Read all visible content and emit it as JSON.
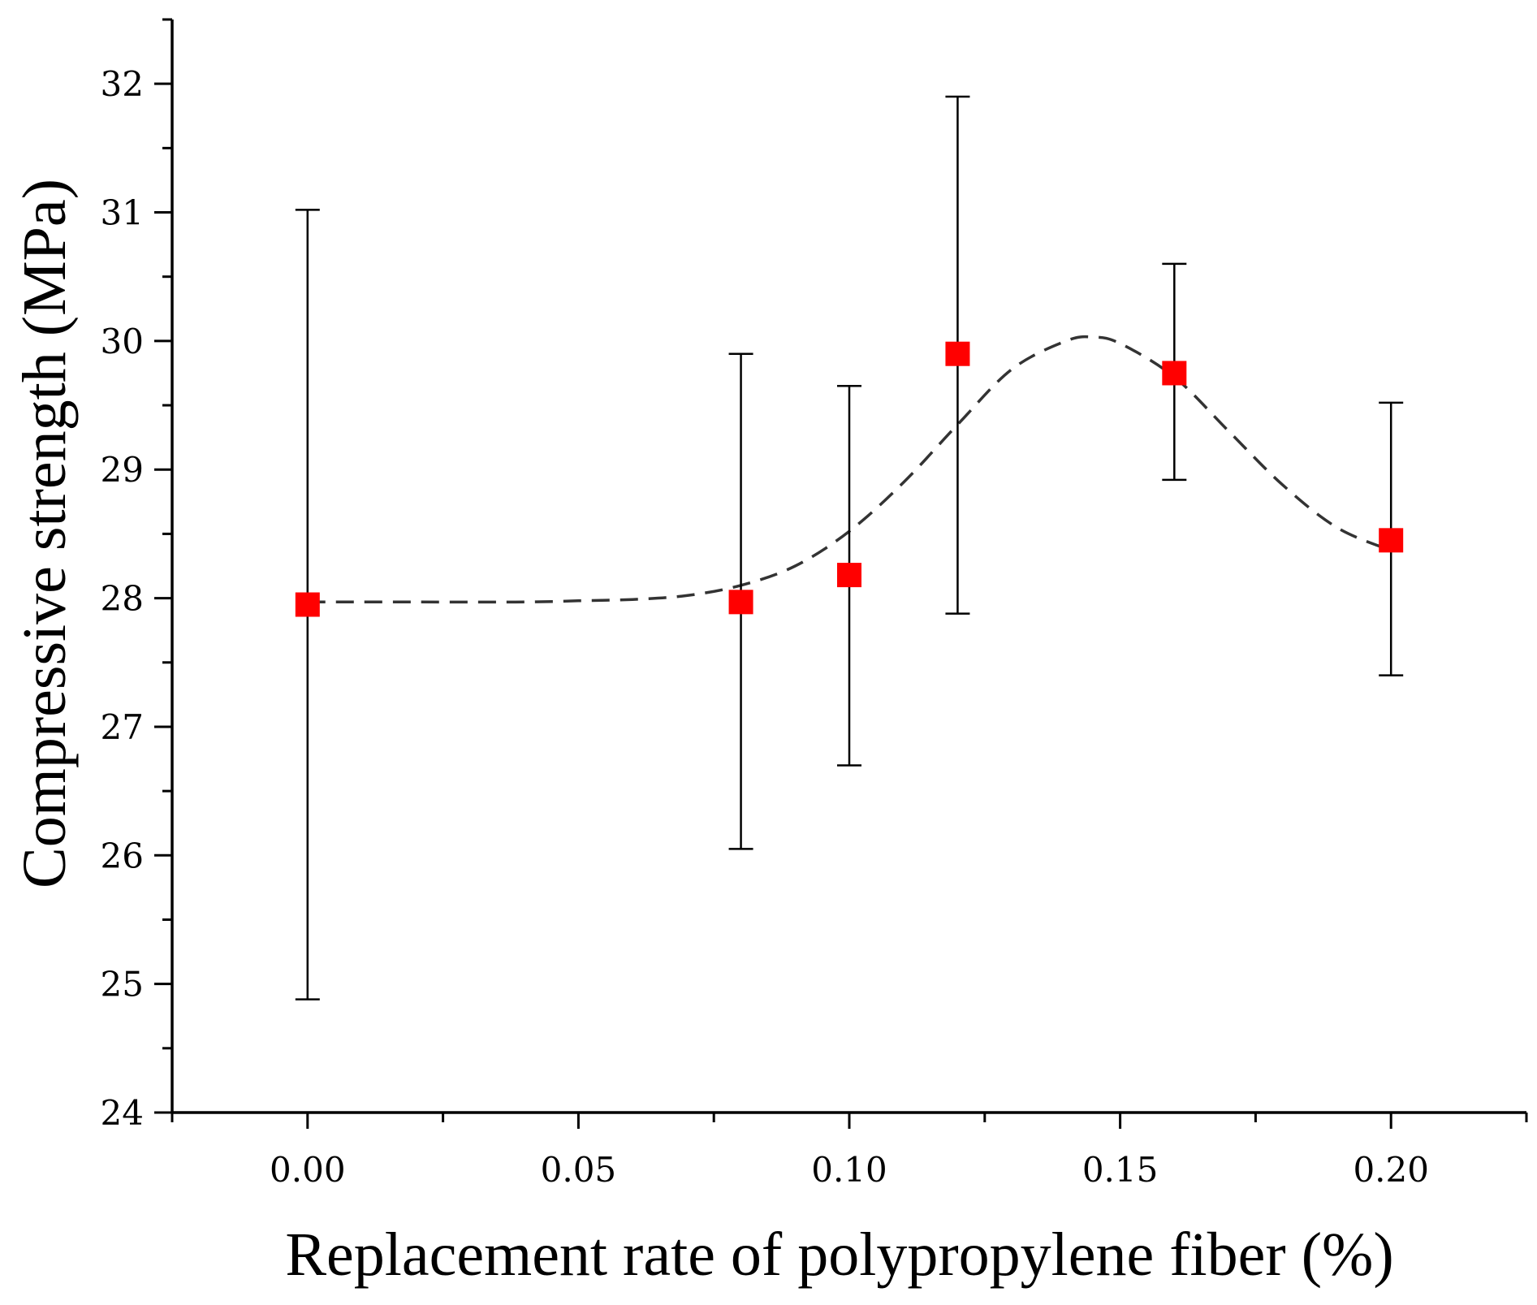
{
  "chart_data": {
    "type": "scatter",
    "title": "",
    "xlabel": "Replacement rate of polypropylene fiber (%)",
    "ylabel": "Compressive strength (MPa)",
    "xlim": [
      -0.025,
      0.225
    ],
    "ylim": [
      24,
      32.5
    ],
    "x_ticks": [
      0.0,
      0.05,
      0.1,
      0.15,
      0.2
    ],
    "x_tick_labels": [
      "0.00",
      "0.05",
      "0.10",
      "0.15",
      "0.20"
    ],
    "x_minor_ticks": [
      -0.025,
      0.025,
      0.075,
      0.125,
      0.175,
      0.225
    ],
    "y_ticks": [
      24,
      25,
      26,
      27,
      28,
      29,
      30,
      31,
      32
    ],
    "y_tick_labels": [
      "24",
      "25",
      "26",
      "27",
      "28",
      "29",
      "30",
      "31",
      "32"
    ],
    "y_minor_ticks": [
      24.5,
      25.5,
      26.5,
      27.5,
      28.5,
      29.5,
      30.5,
      31.5,
      32.5
    ],
    "grid": false,
    "series": [
      {
        "name": "Compressive strength",
        "marker": "square",
        "color": "#ff0000",
        "x": [
          0.0,
          0.08,
          0.1,
          0.12,
          0.16,
          0.2
        ],
        "y": [
          27.95,
          27.97,
          28.18,
          29.9,
          29.75,
          28.45
        ],
        "y_err_low": [
          24.88,
          26.05,
          26.7,
          27.88,
          28.92,
          27.4
        ],
        "y_err_high": [
          31.02,
          29.9,
          29.65,
          31.9,
          30.6,
          29.52
        ]
      }
    ],
    "fit_curve": {
      "name": "fit",
      "style": "dashed",
      "color": "#333333",
      "x": [
        0.0,
        0.02,
        0.04,
        0.05,
        0.06,
        0.07,
        0.08,
        0.09,
        0.1,
        0.11,
        0.12,
        0.13,
        0.14,
        0.145,
        0.15,
        0.16,
        0.17,
        0.18,
        0.19,
        0.2
      ],
      "y": [
        27.97,
        27.97,
        27.97,
        27.98,
        27.99,
        28.02,
        28.1,
        28.25,
        28.52,
        28.9,
        29.35,
        29.78,
        30.0,
        30.03,
        29.98,
        29.72,
        29.3,
        28.88,
        28.55,
        28.37
      ]
    }
  }
}
